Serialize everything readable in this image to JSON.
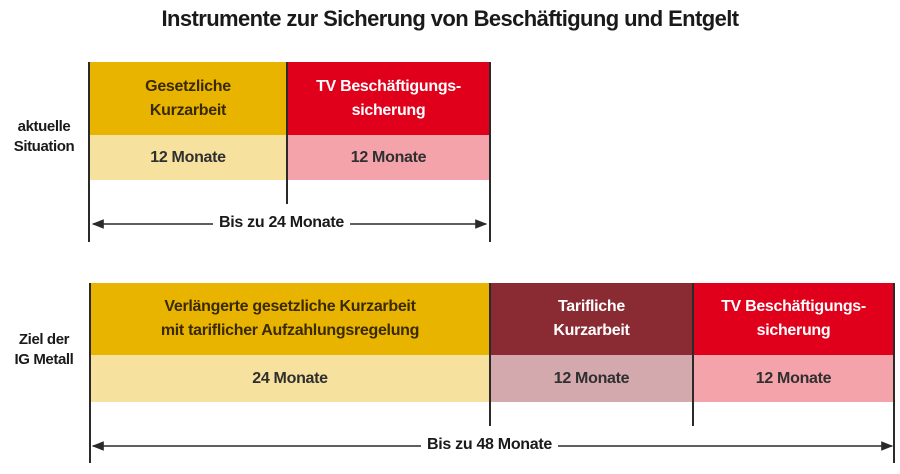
{
  "title": "Instrumente zur Sicherung von Beschäftigung und Entgelt",
  "current": {
    "label": "aktuelle\nSituation",
    "boxes": [
      {
        "name": "Gesetzliche\nKurzarbeit",
        "duration": "12 Monate"
      },
      {
        "name": "TV Beschäftigungs-\nsicherung",
        "duration": "12 Monate"
      }
    ],
    "total": "Bis zu 24 Monate"
  },
  "goal": {
    "label": "Ziel der\nIG Metall",
    "boxes": [
      {
        "name": "Verlängerte gesetzliche Kurzarbeit\nmit tariflicher Aufzahlungsregelung",
        "duration": "24 Monate"
      },
      {
        "name": "Tarifliche\nKurzarbeit",
        "duration": "12 Monate"
      },
      {
        "name": "TV Beschäftigungs-\nsicherung",
        "duration": "12 Monate"
      }
    ],
    "total": "Bis zu 48 Monate"
  },
  "colors": {
    "ochre": "#e8b400",
    "light_ochre": "#f7e19e",
    "red": "#e0001b",
    "pink": "#f4a3ab",
    "maroon": "#8a2a33",
    "dusty_pink": "#d3a9ae"
  }
}
